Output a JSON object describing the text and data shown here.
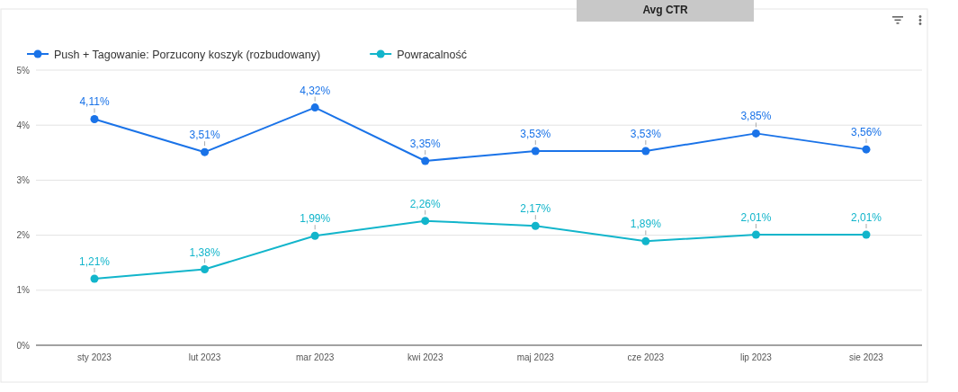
{
  "chart_data": {
    "type": "line",
    "title": "Avg CTR",
    "categories": [
      "sty 2023",
      "lut 2023",
      "mar 2023",
      "kwi 2023",
      "maj 2023",
      "cze 2023",
      "lip 2023",
      "sie 2023"
    ],
    "series": [
      {
        "name": "Push + Tagowanie: Porzucony koszyk (rozbudowany)",
        "color": "#1a73e8",
        "values": [
          4.11,
          3.51,
          4.32,
          3.35,
          3.53,
          3.53,
          3.85,
          3.56
        ],
        "value_labels": [
          "4,11%",
          "3,51%",
          "4,32%",
          "3,35%",
          "3,53%",
          "3,53%",
          "3,85%",
          "3,56%"
        ]
      },
      {
        "name": "Powracalność",
        "color": "#12b5cb",
        "values": [
          1.21,
          1.38,
          1.99,
          2.26,
          2.17,
          1.89,
          2.01,
          2.01
        ],
        "value_labels": [
          "1,21%",
          "1,38%",
          "1,99%",
          "2,26%",
          "2,17%",
          "1,89%",
          "2,01%",
          "2,01%"
        ]
      }
    ],
    "ylim": [
      0,
      5
    ],
    "yticks": [
      {
        "value": 0,
        "label": "0%"
      },
      {
        "value": 1,
        "label": "1%"
      },
      {
        "value": 2,
        "label": "2%"
      },
      {
        "value": 3,
        "label": "3%"
      },
      {
        "value": 4,
        "label": "4%"
      },
      {
        "value": 5,
        "label": "5%"
      }
    ],
    "grid": "y",
    "legend": "top left",
    "marker": "circle",
    "line_style": "solid"
  }
}
